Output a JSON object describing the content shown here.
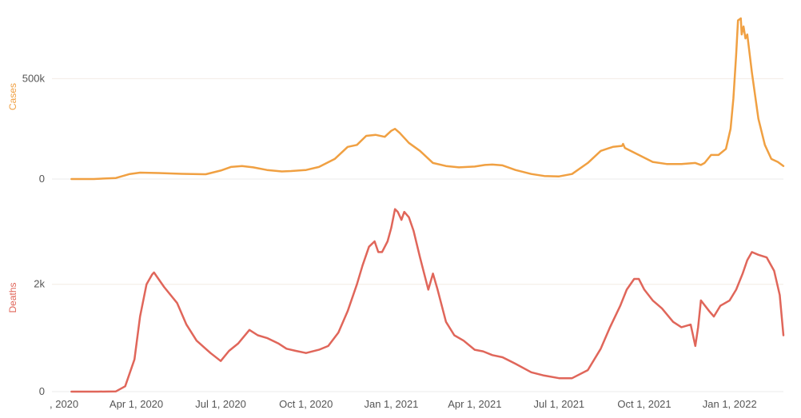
{
  "chart_data": [
    {
      "type": "line",
      "ylabel": "Cases",
      "color": "#f0a042",
      "ylim": [
        0,
        820000
      ],
      "yticks": [
        {
          "value": 0,
          "label": "0"
        },
        {
          "value": 500000,
          "label": "500k"
        }
      ],
      "grid": true,
      "series": [
        {
          "x": [
            "2020-01-22",
            "2020-02-15",
            "2020-03-10",
            "2020-03-25",
            "2020-04-05",
            "2020-04-25",
            "2020-05-20",
            "2020-06-15",
            "2020-07-01",
            "2020-07-12",
            "2020-07-24",
            "2020-08-05",
            "2020-08-20",
            "2020-09-05",
            "2020-09-15",
            "2020-10-01",
            "2020-10-15",
            "2020-11-01",
            "2020-11-15",
            "2020-11-25",
            "2020-12-05",
            "2020-12-15",
            "2020-12-25",
            "2021-01-01",
            "2021-01-05",
            "2021-01-10",
            "2021-01-20",
            "2021-02-01",
            "2021-02-15",
            "2021-03-01",
            "2021-03-15",
            "2021-04-01",
            "2021-04-12",
            "2021-04-20",
            "2021-05-01",
            "2021-05-15",
            "2021-06-01",
            "2021-06-15",
            "2021-07-01",
            "2021-07-15",
            "2021-08-01",
            "2021-08-15",
            "2021-08-28",
            "2021-09-07",
            "2021-09-08",
            "2021-09-10",
            "2021-09-25",
            "2021-10-10",
            "2021-10-25",
            "2021-11-10",
            "2021-11-25",
            "2021-12-01",
            "2021-12-05",
            "2021-12-12",
            "2021-12-20",
            "2021-12-28",
            "2022-01-02",
            "2022-01-05",
            "2022-01-08",
            "2022-01-10",
            "2022-01-13",
            "2022-01-14",
            "2022-01-16",
            "2022-01-18",
            "2022-01-20",
            "2022-01-25",
            "2022-02-01",
            "2022-02-08",
            "2022-02-15",
            "2022-02-22",
            "2022-02-28"
          ],
          "y": [
            0,
            0,
            5000,
            25000,
            32000,
            30000,
            26000,
            24000,
            42000,
            60000,
            65000,
            58000,
            45000,
            38000,
            40000,
            45000,
            60000,
            100000,
            160000,
            170000,
            215000,
            220000,
            210000,
            240000,
            250000,
            230000,
            180000,
            140000,
            80000,
            65000,
            58000,
            62000,
            70000,
            72000,
            68000,
            45000,
            25000,
            15000,
            13000,
            25000,
            80000,
            140000,
            160000,
            165000,
            175000,
            155000,
            120000,
            85000,
            75000,
            75000,
            80000,
            70000,
            80000,
            120000,
            120000,
            150000,
            250000,
            400000,
            620000,
            790000,
            800000,
            720000,
            760000,
            700000,
            720000,
            530000,
            300000,
            170000,
            100000,
            85000,
            65000
          ]
        }
      ]
    },
    {
      "type": "line",
      "ylabel": "Deaths",
      "color": "#e0665a",
      "ylim": [
        0,
        3500
      ],
      "yticks": [
        {
          "value": 0,
          "label": "0"
        },
        {
          "value": 2000,
          "label": "2k"
        }
      ],
      "grid": true,
      "series": [
        {
          "x": [
            "2020-01-22",
            "2020-02-20",
            "2020-03-10",
            "2020-03-20",
            "2020-03-30",
            "2020-04-05",
            "2020-04-12",
            "2020-04-18",
            "2020-04-20",
            "2020-05-01",
            "2020-05-15",
            "2020-05-25",
            "2020-06-05",
            "2020-06-20",
            "2020-07-01",
            "2020-07-10",
            "2020-07-20",
            "2020-08-01",
            "2020-08-10",
            "2020-08-20",
            "2020-09-01",
            "2020-09-10",
            "2020-09-20",
            "2020-10-01",
            "2020-10-15",
            "2020-10-25",
            "2020-11-05",
            "2020-11-15",
            "2020-11-25",
            "2020-12-01",
            "2020-12-08",
            "2020-12-14",
            "2020-12-18",
            "2020-12-22",
            "2020-12-28",
            "2021-01-01",
            "2021-01-05",
            "2021-01-08",
            "2021-01-12",
            "2021-01-15",
            "2021-01-20",
            "2021-01-25",
            "2021-02-01",
            "2021-02-10",
            "2021-02-15",
            "2021-02-20",
            "2021-03-01",
            "2021-03-10",
            "2021-03-20",
            "2021-04-01",
            "2021-04-10",
            "2021-04-20",
            "2021-05-01",
            "2021-05-15",
            "2021-06-01",
            "2021-06-15",
            "2021-07-01",
            "2021-07-15",
            "2021-08-01",
            "2021-08-15",
            "2021-08-25",
            "2021-09-05",
            "2021-09-12",
            "2021-09-20",
            "2021-09-25",
            "2021-10-01",
            "2021-10-10",
            "2021-10-20",
            "2021-11-01",
            "2021-11-10",
            "2021-11-20",
            "2021-11-25",
            "2021-11-28",
            "2021-12-01",
            "2021-12-10",
            "2021-12-15",
            "2021-12-22",
            "2022-01-01",
            "2022-01-08",
            "2022-01-15",
            "2022-01-20",
            "2022-01-25",
            "2022-02-01",
            "2022-02-10",
            "2022-02-18",
            "2022-02-24",
            "2022-02-28"
          ],
          "y": [
            0,
            0,
            5,
            100,
            600,
            1400,
            2000,
            2180,
            2220,
            1950,
            1650,
            1250,
            950,
            720,
            570,
            760,
            900,
            1150,
            1050,
            1000,
            900,
            800,
            760,
            720,
            780,
            850,
            1100,
            1500,
            2000,
            2350,
            2700,
            2800,
            2600,
            2600,
            2800,
            3050,
            3400,
            3350,
            3200,
            3350,
            3250,
            3000,
            2500,
            1900,
            2200,
            1900,
            1300,
            1050,
            950,
            780,
            750,
            680,
            640,
            520,
            360,
            300,
            250,
            250,
            400,
            800,
            1200,
            1600,
            1900,
            2100,
            2100,
            1900,
            1700,
            1550,
            1300,
            1200,
            1250,
            850,
            1200,
            1700,
            1500,
            1400,
            1600,
            1700,
            1900,
            2200,
            2450,
            2600,
            2550,
            2500,
            2250,
            1800,
            1050
          ]
        }
      ]
    }
  ],
  "x_axis": {
    "ticks": [
      {
        "date": "2020-01-01",
        "label": ", 2020"
      },
      {
        "date": "2020-04-01",
        "label": "Apr 1, 2020"
      },
      {
        "date": "2020-07-01",
        "label": "Jul 1, 2020"
      },
      {
        "date": "2020-10-01",
        "label": "Oct 1, 2020"
      },
      {
        "date": "2021-01-01",
        "label": "Jan 1, 2021"
      },
      {
        "date": "2021-04-01",
        "label": "Apr 1, 2021"
      },
      {
        "date": "2021-07-01",
        "label": "Jul 1, 2021"
      },
      {
        "date": "2021-10-01",
        "label": "Oct 1, 2021"
      },
      {
        "date": "2022-01-01",
        "label": "Jan 1, 2022"
      }
    ]
  }
}
